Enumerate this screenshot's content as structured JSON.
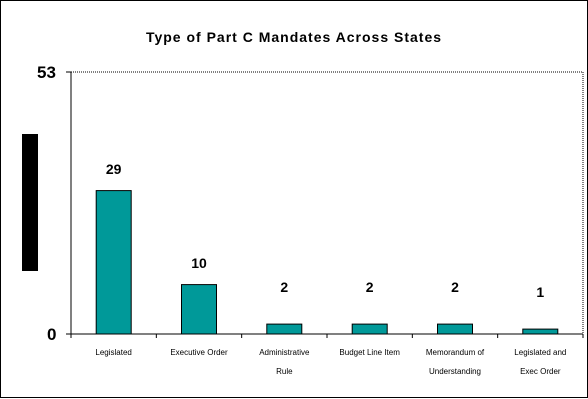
{
  "chart_data": {
    "type": "bar",
    "title": "Type of Part C Mandates Across States",
    "categories": [
      [
        "Legislated"
      ],
      [
        "Executive Order"
      ],
      [
        "Administrative",
        "Rule"
      ],
      [
        "Budget Line Item"
      ],
      [
        "Memorandum of",
        "Understanding"
      ],
      [
        "Legislated and",
        "Exec Order"
      ]
    ],
    "values": [
      29,
      10,
      2,
      2,
      2,
      1
    ],
    "value_labels": [
      "29",
      "10",
      "2",
      "2",
      "2",
      "1"
    ],
    "ylim": [
      0,
      53
    ],
    "yticks": [
      "0",
      "53"
    ],
    "bar_color": "#009999",
    "grid": false
  }
}
